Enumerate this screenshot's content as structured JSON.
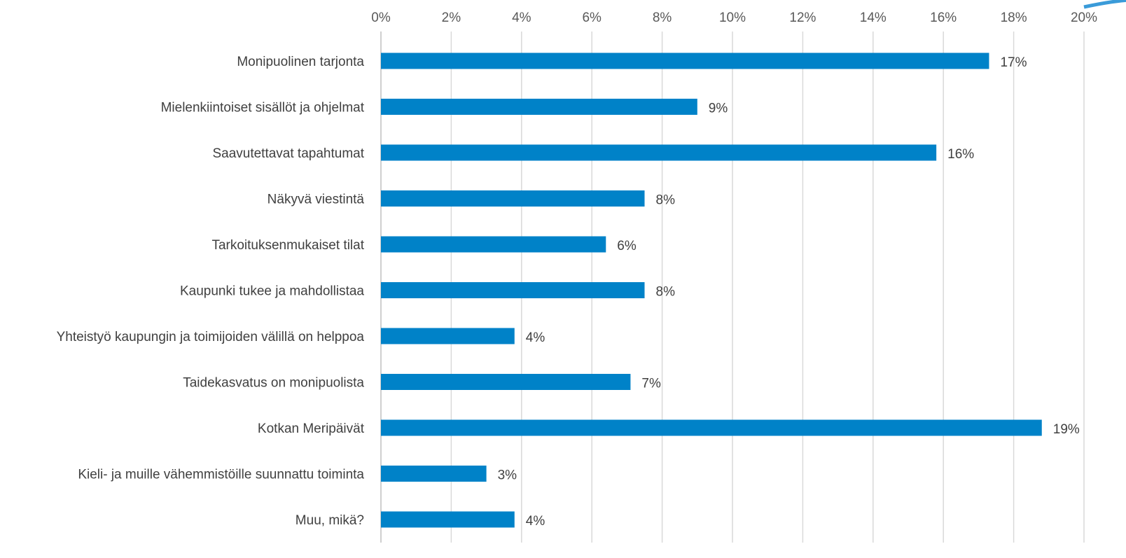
{
  "chart_data": {
    "type": "bar",
    "orientation": "horizontal",
    "title": "",
    "xlabel": "",
    "ylabel": "",
    "xlim": [
      0,
      20
    ],
    "tick_step": 2,
    "tick_labels": [
      "0%",
      "2%",
      "4%",
      "6%",
      "8%",
      "10%",
      "12%",
      "14%",
      "16%",
      "18%",
      "20%"
    ],
    "axis_position": "top",
    "grid": true,
    "legend": "none",
    "bar_color": "#0082C8",
    "categories": [
      "Monipuolinen tarjonta",
      "Mielenkiintoiset sisällöt ja ohjelmat",
      "Saavutettavat tapahtumat",
      "Näkyvä viestintä",
      "Tarkoituksenmukaiset tilat",
      "Kaupunki tukee ja mahdollistaa",
      "Yhteistyö kaupungin ja toimijoiden välillä on helppoa",
      "Taidekasvatus on monipuolista",
      "Kotkan Meripäivät",
      "Kieli- ja muille vähemmistöille suunnattu toiminta",
      "Muu, mikä?"
    ],
    "values": [
      17.3,
      9.0,
      15.8,
      7.5,
      6.4,
      7.5,
      3.8,
      7.1,
      18.8,
      3.0,
      3.8
    ],
    "data_labels": [
      "17%",
      "9%",
      "16%",
      "8%",
      "6%",
      "8%",
      "4%",
      "7%",
      "19%",
      "3%",
      "4%"
    ]
  }
}
